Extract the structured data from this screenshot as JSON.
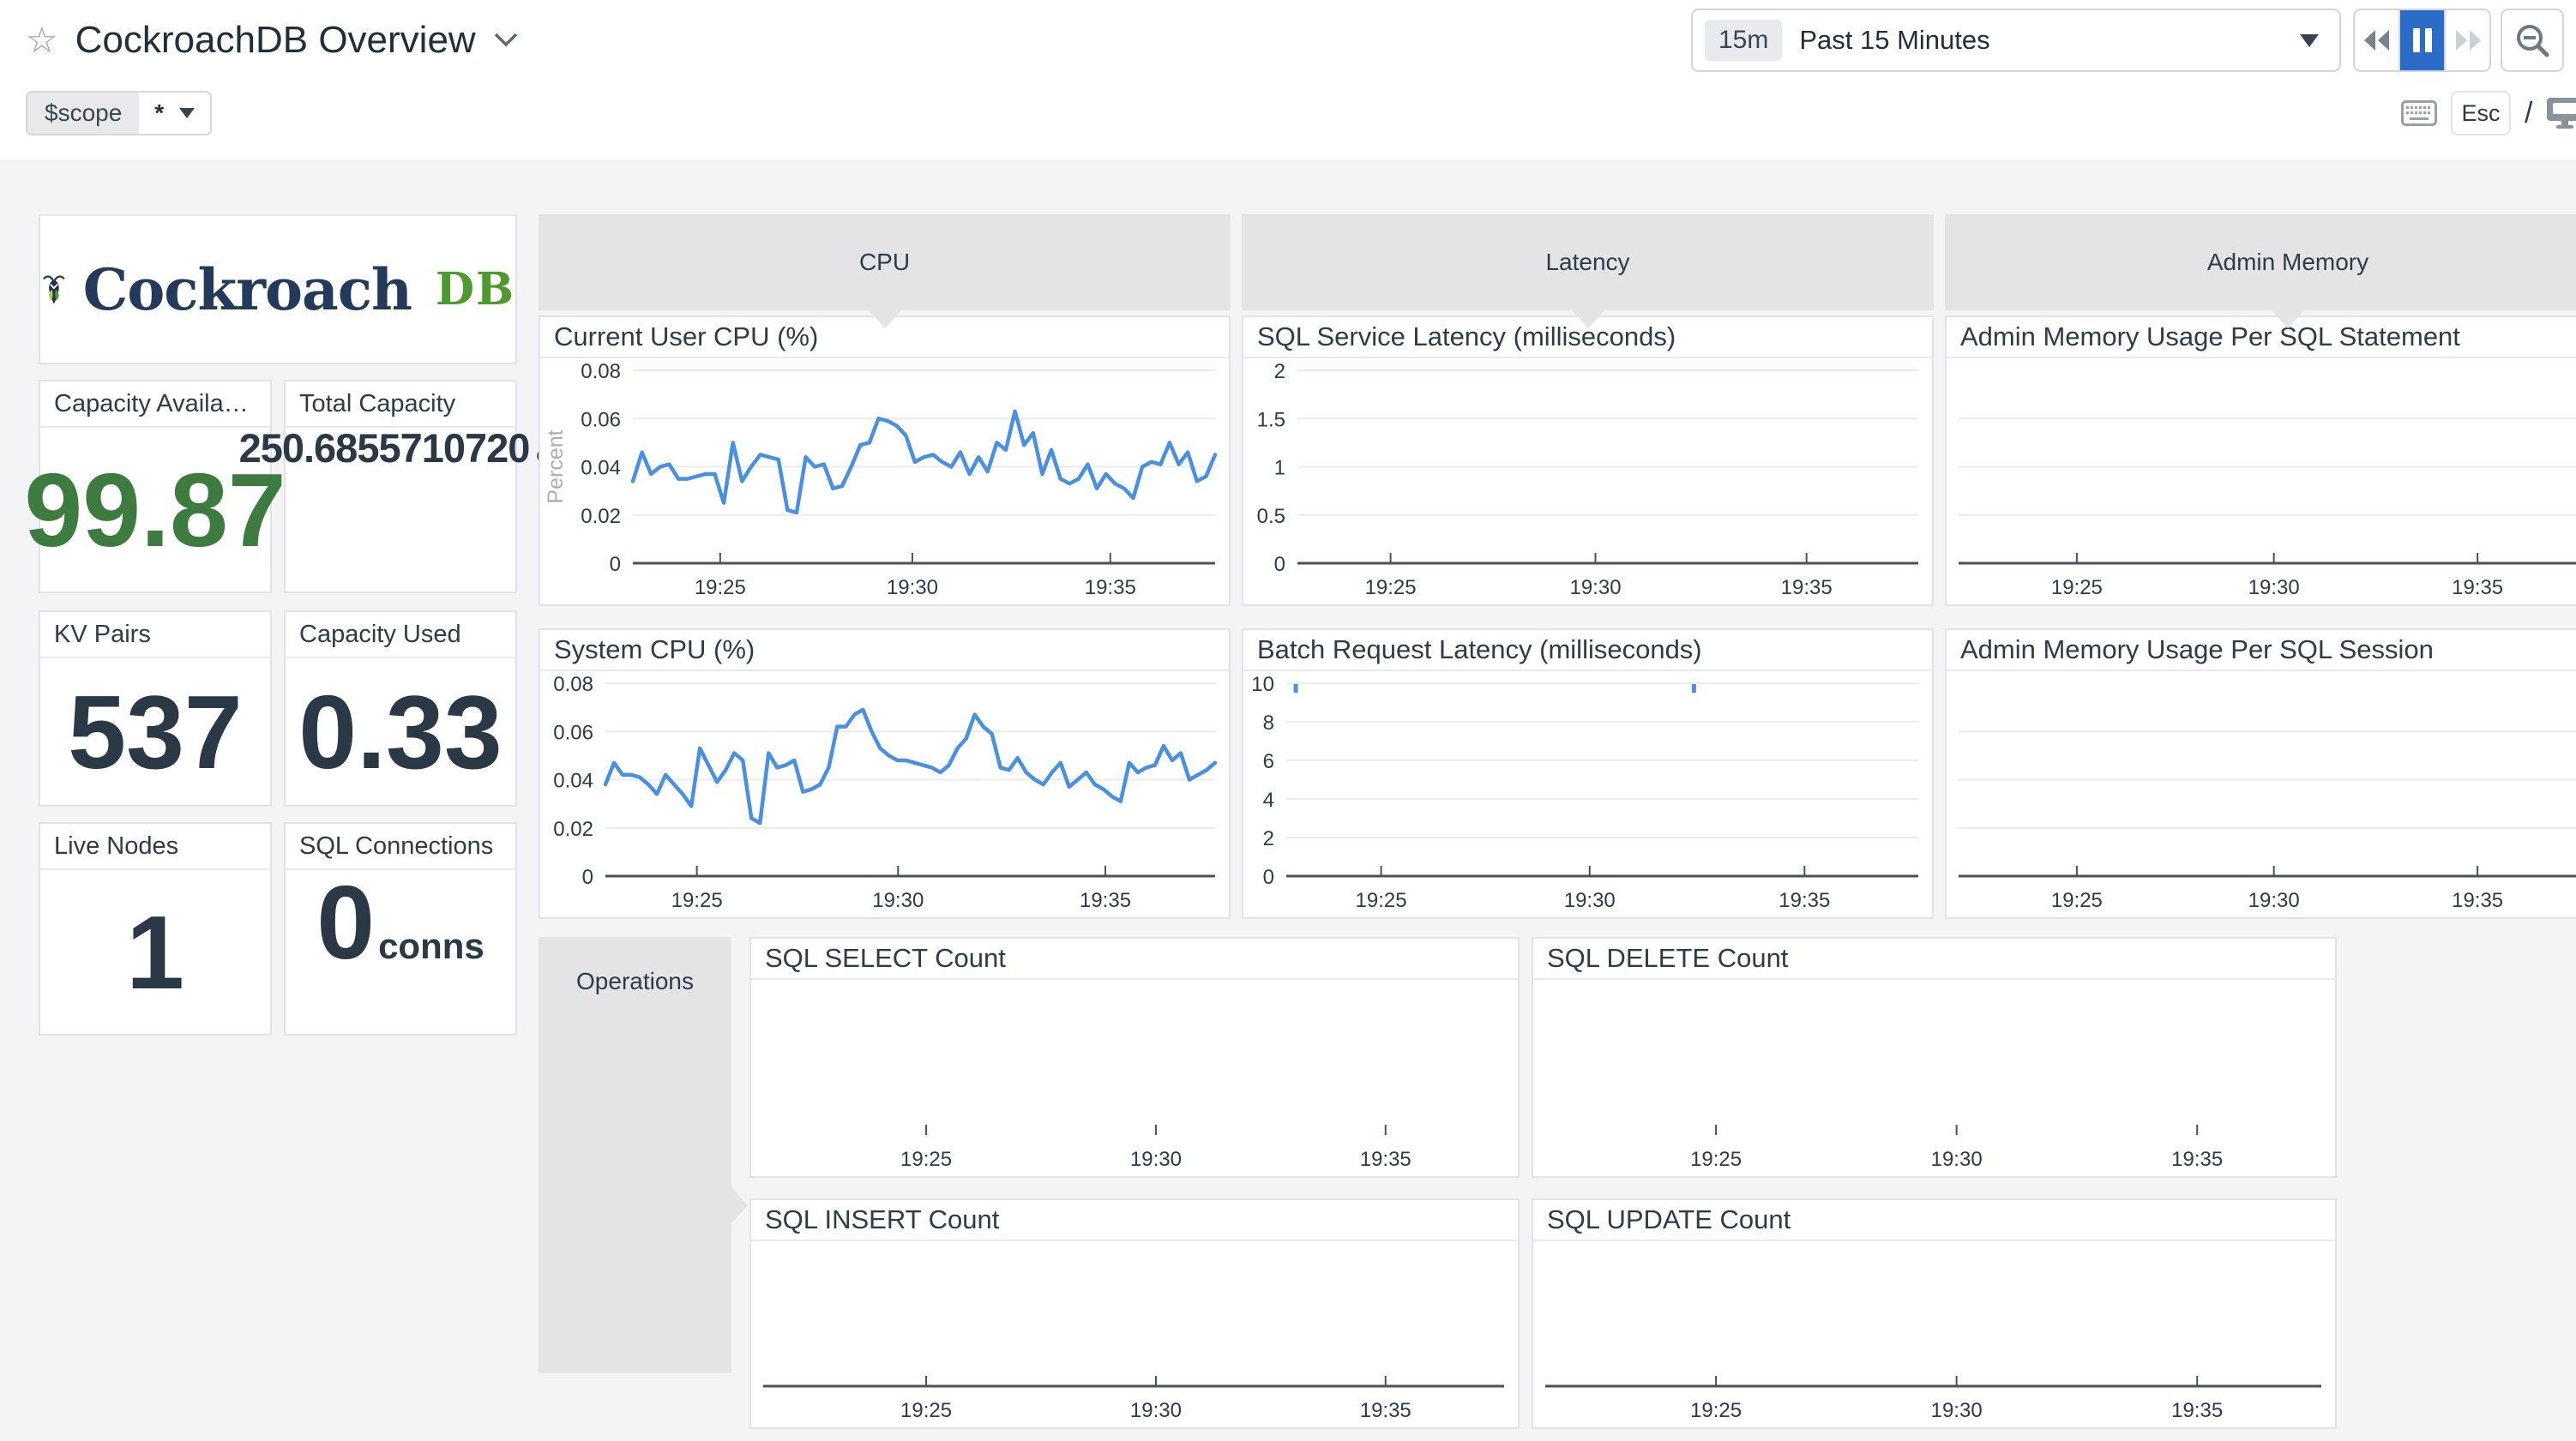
{
  "colors": {
    "line_blue": "#4a90e2",
    "green": "#3e7b3f",
    "dark": "#2b3845",
    "accent_pause": "#2a6cc8"
  },
  "header": {
    "title": "CockroachDB Overview",
    "star_icon": "star-outline",
    "chevron_icon": "chevron-down",
    "time_badge": "15m",
    "time_label": "Past 15 Minutes",
    "rewind_icon": "rewind",
    "pause_icon": "pause",
    "forward_icon": "fast-forward",
    "zoom_out_icon": "magnifier-minus",
    "keyboard_icon": "keyboard",
    "esc_label": "Esc",
    "slash": "/",
    "monitor_icon": "monitor"
  },
  "scope": {
    "label": "$scope",
    "value": "*"
  },
  "logo": {
    "primary": "Cockroach",
    "secondary": "DB",
    "bug_icon": "cockroach-bug"
  },
  "groups": {
    "cpu": "CPU",
    "latency": "Latency",
    "admin_memory": "Admin Memory",
    "operations": "Operations"
  },
  "stats": [
    {
      "title": "Capacity Available...",
      "value": "99.87"
    },
    {
      "title": "Total Capacity",
      "value": "250.6855710720",
      "unit": "GB"
    },
    {
      "title": "KV Pairs",
      "value": "537"
    },
    {
      "title": "Capacity Used",
      "value": "0.33"
    },
    {
      "title": "Live Nodes",
      "value": "1"
    },
    {
      "title": "SQL Connections",
      "value": "0",
      "unit": "conns"
    }
  ],
  "chart_data": [
    {
      "type": "line",
      "title": "Current User CPU (%)",
      "ylabel": "Percent",
      "ylim": [
        0,
        0.08
      ],
      "yticks": [
        0,
        0.02,
        0.04,
        0.06,
        0.08
      ],
      "xticks": [
        {
          "pos": 0.15,
          "label": "19:25"
        },
        {
          "pos": 0.48,
          "label": "19:30"
        },
        {
          "pos": 0.82,
          "label": "19:35"
        }
      ],
      "values": [
        0.034,
        0.046,
        0.037,
        0.04,
        0.041,
        0.035,
        0.035,
        0.036,
        0.037,
        0.037,
        0.025,
        0.05,
        0.034,
        0.04,
        0.045,
        0.044,
        0.043,
        0.022,
        0.021,
        0.044,
        0.04,
        0.041,
        0.031,
        0.032,
        0.04,
        0.049,
        0.05,
        0.06,
        0.059,
        0.057,
        0.053,
        0.042,
        0.044,
        0.045,
        0.042,
        0.04,
        0.046,
        0.037,
        0.044,
        0.038,
        0.05,
        0.047,
        0.063,
        0.049,
        0.054,
        0.037,
        0.047,
        0.035,
        0.033,
        0.035,
        0.041,
        0.031,
        0.037,
        0.033,
        0.031,
        0.027,
        0.04,
        0.042,
        0.041,
        0.05,
        0.041,
        0.046,
        0.034,
        0.036,
        0.045
      ]
    },
    {
      "type": "line",
      "title": "System CPU (%)",
      "ylim": [
        0,
        0.08
      ],
      "yticks": [
        0,
        0.02,
        0.04,
        0.06,
        0.08
      ],
      "xticks": [
        {
          "pos": 0.15,
          "label": "19:25"
        },
        {
          "pos": 0.48,
          "label": "19:30"
        },
        {
          "pos": 0.82,
          "label": "19:35"
        }
      ],
      "values": [
        0.038,
        0.047,
        0.042,
        0.042,
        0.041,
        0.038,
        0.034,
        0.042,
        0.038,
        0.034,
        0.029,
        0.053,
        0.046,
        0.039,
        0.044,
        0.051,
        0.048,
        0.024,
        0.022,
        0.051,
        0.045,
        0.046,
        0.048,
        0.035,
        0.036,
        0.038,
        0.045,
        0.062,
        0.062,
        0.067,
        0.069,
        0.06,
        0.053,
        0.05,
        0.048,
        0.048,
        0.047,
        0.046,
        0.045,
        0.043,
        0.046,
        0.053,
        0.057,
        0.067,
        0.062,
        0.059,
        0.045,
        0.044,
        0.049,
        0.043,
        0.04,
        0.038,
        0.043,
        0.047,
        0.037,
        0.04,
        0.043,
        0.038,
        0.036,
        0.033,
        0.031,
        0.047,
        0.043,
        0.045,
        0.046,
        0.054,
        0.048,
        0.051,
        0.04,
        0.042,
        0.044,
        0.047
      ]
    },
    {
      "type": "line",
      "title": "SQL Service Latency (milliseconds)",
      "ylim": [
        0,
        2
      ],
      "yticks": [
        0,
        0.5,
        1,
        1.5,
        2
      ],
      "xticks": [
        {
          "pos": 0.15,
          "label": "19:25"
        },
        {
          "pos": 0.48,
          "label": "19:30"
        },
        {
          "pos": 0.82,
          "label": "19:35"
        }
      ],
      "values": []
    },
    {
      "type": "line",
      "title": "Batch Request Latency (milliseconds)",
      "ylim": [
        0,
        10
      ],
      "yticks": [
        0,
        2,
        4,
        6,
        8,
        10
      ],
      "xticks": [
        {
          "pos": 0.15,
          "label": "19:25"
        },
        {
          "pos": 0.48,
          "label": "19:30"
        },
        {
          "pos": 0.82,
          "label": "19:35"
        }
      ],
      "values": [],
      "spikes": [
        0.015,
        0.645
      ]
    },
    {
      "type": "line",
      "title": "Admin Memory Usage Per SQL Statement",
      "gridlines": 3,
      "xticks": [
        {
          "pos": 0.18,
          "label": "19:25"
        },
        {
          "pos": 0.48,
          "label": "19:30"
        },
        {
          "pos": 0.79,
          "label": "19:35"
        }
      ],
      "values": []
    },
    {
      "type": "line",
      "title": "Admin Memory Usage Per SQL Session",
      "gridlines": 3,
      "xticks": [
        {
          "pos": 0.18,
          "label": "19:25"
        },
        {
          "pos": 0.48,
          "label": "19:30"
        },
        {
          "pos": 0.79,
          "label": "19:35"
        }
      ],
      "values": []
    },
    {
      "type": "line",
      "title": "SQL SELECT Count",
      "axis": "none",
      "xticks": [
        {
          "pos": 0.22,
          "label": "19:25"
        },
        {
          "pos": 0.53,
          "label": "19:30"
        },
        {
          "pos": 0.84,
          "label": "19:35"
        }
      ],
      "values": []
    },
    {
      "type": "line",
      "title": "SQL DELETE Count",
      "axis": "none",
      "xticks": [
        {
          "pos": 0.22,
          "label": "19:25"
        },
        {
          "pos": 0.53,
          "label": "19:30"
        },
        {
          "pos": 0.84,
          "label": "19:35"
        }
      ],
      "values": []
    },
    {
      "type": "line",
      "title": "SQL INSERT Count",
      "xticks": [
        {
          "pos": 0.22,
          "label": "19:25"
        },
        {
          "pos": 0.53,
          "label": "19:30"
        },
        {
          "pos": 0.84,
          "label": "19:35"
        }
      ],
      "values": []
    },
    {
      "type": "line",
      "title": "SQL UPDATE Count",
      "xticks": [
        {
          "pos": 0.22,
          "label": "19:25"
        },
        {
          "pos": 0.53,
          "label": "19:30"
        },
        {
          "pos": 0.84,
          "label": "19:35"
        }
      ],
      "values": []
    }
  ]
}
